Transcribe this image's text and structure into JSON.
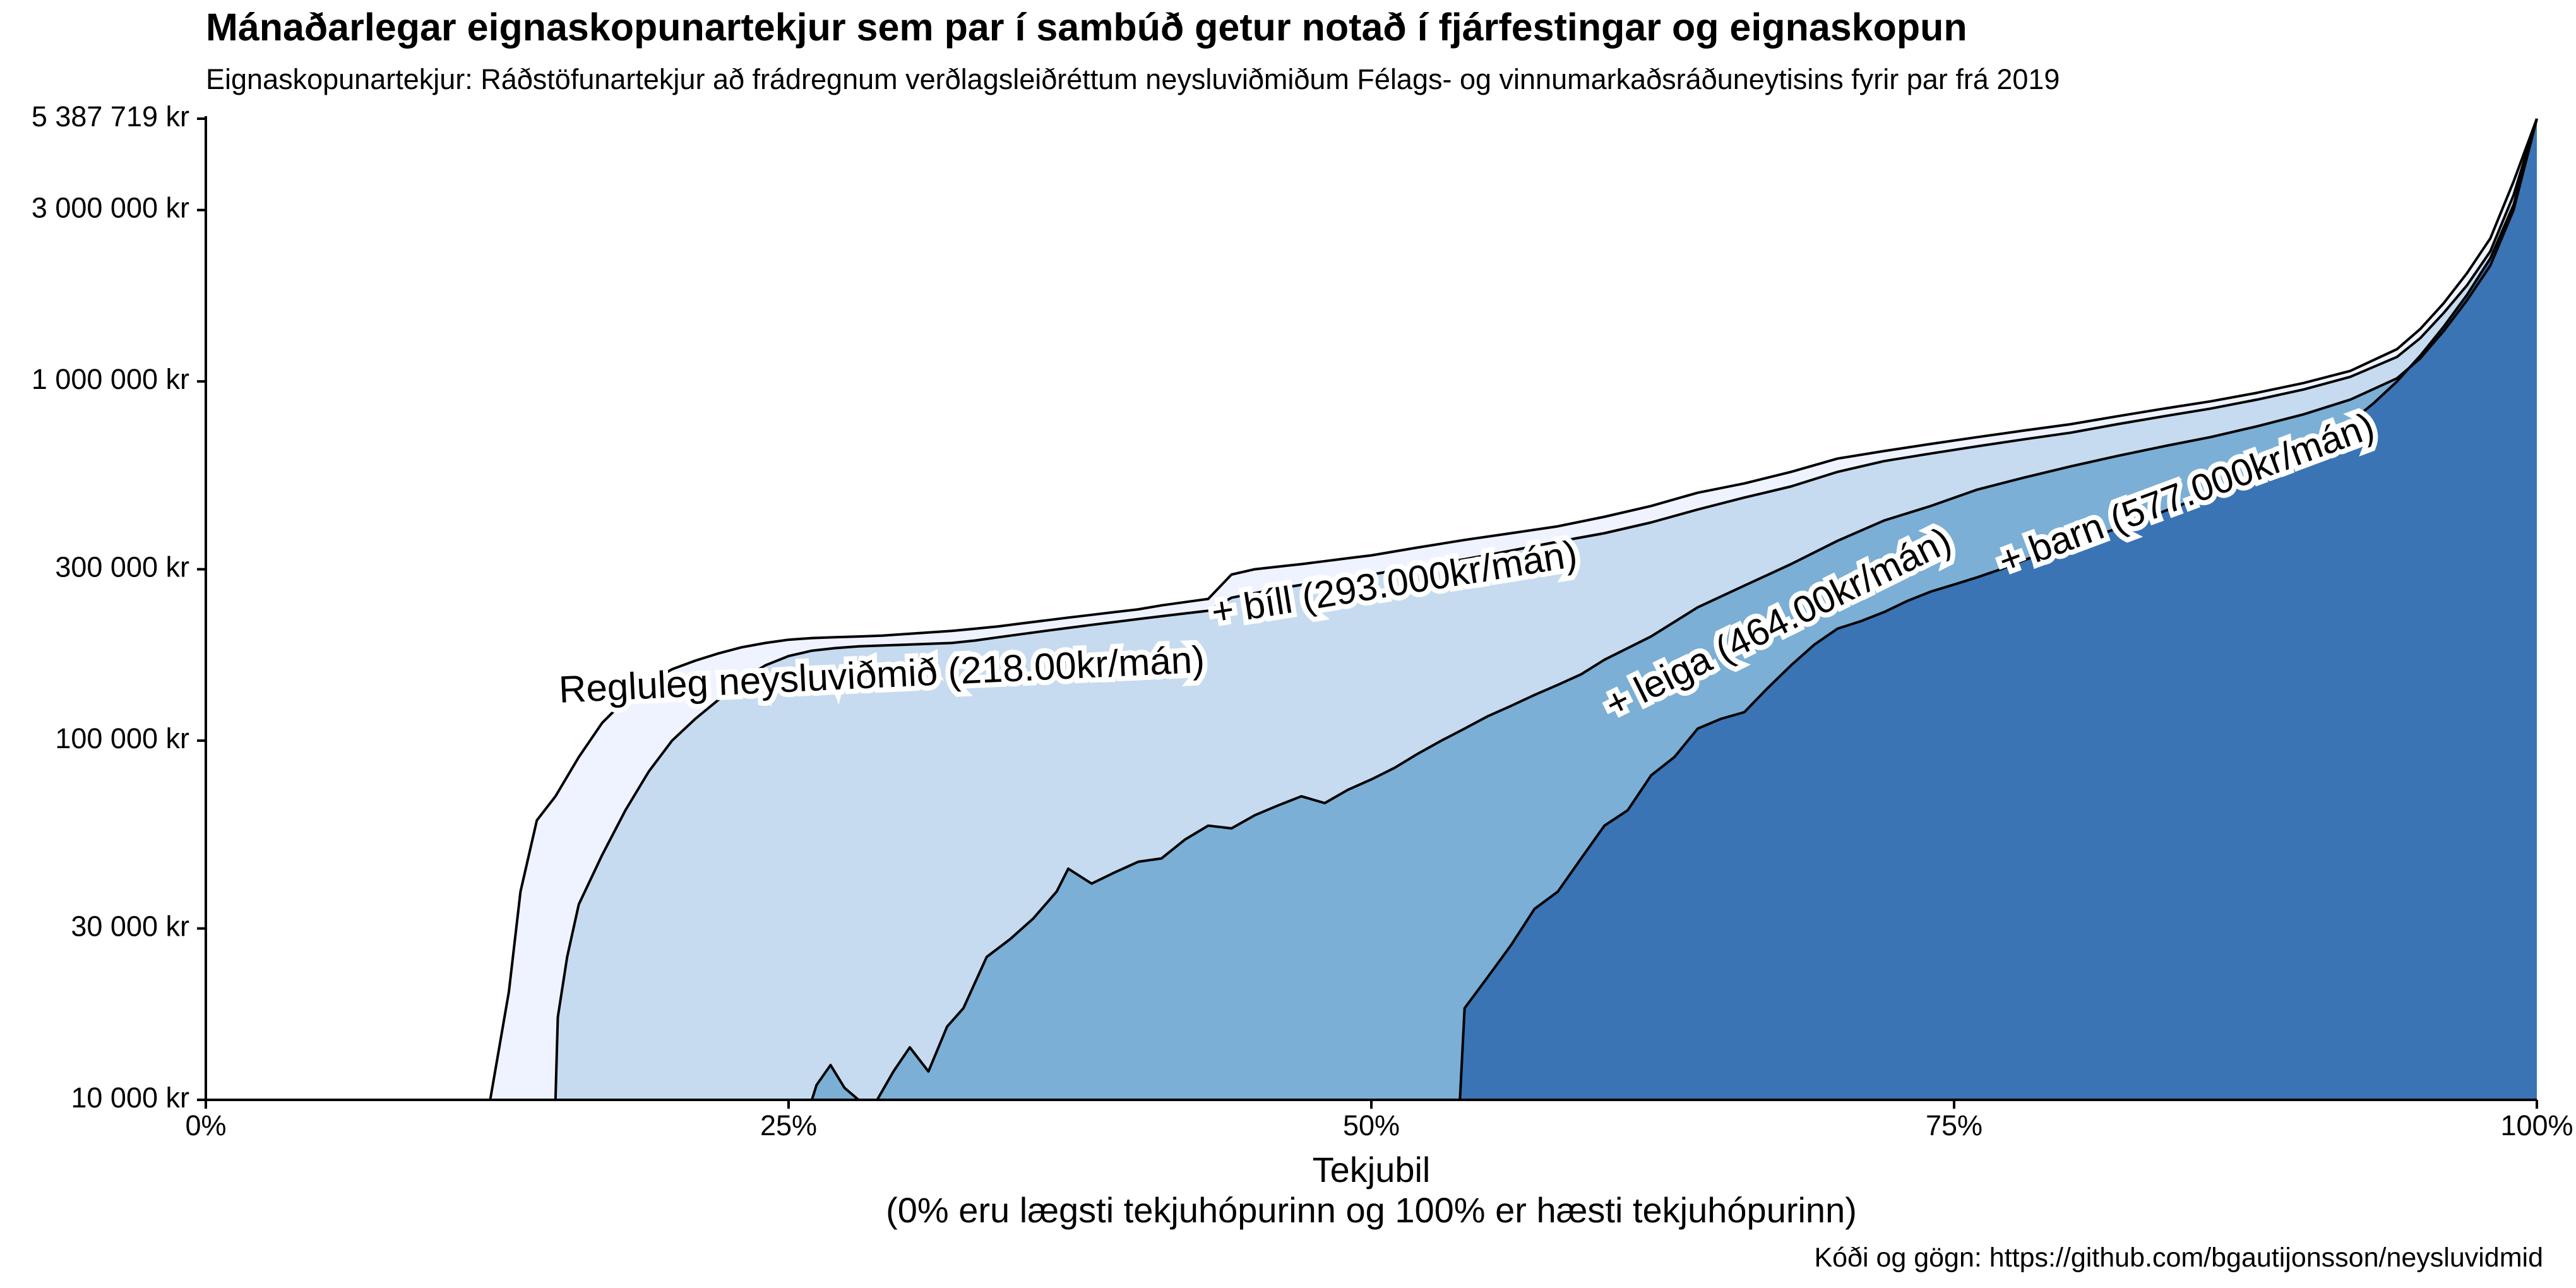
{
  "chart_data": {
    "type": "area",
    "title": "Mánaðarlegar eignaskopunartekjur sem par í sambúð getur notað í fjárfestingar og eignaskopun",
    "subtitle": "Eignaskopunartekjur: Ráðstöfunartekjur að frádregnum verðlagsleiðréttum neysluviðmiðum Félags- og vinnumarkaðsráðuneytisins fyrir par frá 2019",
    "xlabel": "Tekjubil",
    "xlabel_note": "(0% eru lægsti tekjuhópurinn og 100% er hæsti tekjuhópurinn)",
    "caption": "Kóði og gögn: https://github.com/bgautijonsson/neysluvidmid",
    "x_unit": "percent",
    "y_scale": "log",
    "ylim": [
      10000,
      5387719
    ],
    "xlim": [
      0,
      100
    ],
    "y_ticks": [
      {
        "value": 10000,
        "label": "10 000 kr"
      },
      {
        "value": 30000,
        "label": "30 000 kr"
      },
      {
        "value": 100000,
        "label": "100 000 kr"
      },
      {
        "value": 300000,
        "label": "300 000 kr"
      },
      {
        "value": 1000000,
        "label": "1 000 000 kr"
      },
      {
        "value": 3000000,
        "label": "3 000 000 kr"
      },
      {
        "value": 5387719,
        "label": "5 387 719 kr"
      }
    ],
    "x_ticks": [
      {
        "value": 0,
        "label": "0%"
      },
      {
        "value": 25,
        "label": "25%"
      },
      {
        "value": 50,
        "label": "50%"
      },
      {
        "value": 75,
        "label": "75%"
      },
      {
        "value": 100,
        "label": "100%"
      }
    ],
    "grid": false,
    "legend": "none",
    "series": [
      {
        "name": "Regluleg neysluviðmið (218.00kr/mán)",
        "color": "#eff3ff",
        "label_position": {
          "x": 29,
          "y": 150000
        },
        "points": [
          [
            12.2,
            10000
          ],
          [
            13.0,
            20000
          ],
          [
            13.5,
            38000
          ],
          [
            14.2,
            60000
          ],
          [
            15,
            70000
          ],
          [
            16,
            90000
          ],
          [
            17,
            112000
          ],
          [
            18,
            130000
          ],
          [
            19,
            145000
          ],
          [
            20,
            158000
          ],
          [
            21,
            167000
          ],
          [
            22,
            175000
          ],
          [
            23,
            182000
          ],
          [
            24,
            187000
          ],
          [
            25,
            191000
          ],
          [
            26,
            193000
          ],
          [
            27,
            194000
          ],
          [
            28,
            195000
          ],
          [
            29,
            196000
          ],
          [
            30,
            198000
          ],
          [
            31,
            200000
          ],
          [
            32,
            202000
          ],
          [
            33,
            205000
          ],
          [
            34,
            208000
          ],
          [
            35,
            212000
          ],
          [
            36,
            216000
          ],
          [
            37,
            220000
          ],
          [
            38,
            224000
          ],
          [
            39,
            228000
          ],
          [
            40,
            232000
          ],
          [
            41,
            238000
          ],
          [
            42,
            243000
          ],
          [
            43,
            248000
          ],
          [
            44,
            290000
          ],
          [
            45,
            300000
          ],
          [
            46,
            305000
          ],
          [
            47,
            310000
          ],
          [
            48,
            316000
          ],
          [
            49,
            322000
          ],
          [
            50,
            328000
          ],
          [
            52,
            345000
          ],
          [
            54,
            362000
          ],
          [
            56,
            378000
          ],
          [
            58,
            395000
          ],
          [
            60,
            420000
          ],
          [
            62,
            450000
          ],
          [
            64,
            490000
          ],
          [
            66,
            520000
          ],
          [
            68,
            560000
          ],
          [
            70,
            610000
          ],
          [
            72,
            640000
          ],
          [
            74,
            670000
          ],
          [
            76,
            700000
          ],
          [
            78,
            730000
          ],
          [
            80,
            760000
          ],
          [
            82,
            800000
          ],
          [
            84,
            840000
          ],
          [
            86,
            880000
          ],
          [
            88,
            930000
          ],
          [
            90,
            990000
          ],
          [
            92,
            1070000
          ],
          [
            94,
            1230000
          ],
          [
            95,
            1400000
          ],
          [
            96,
            1650000
          ],
          [
            97,
            2000000
          ],
          [
            98,
            2500000
          ],
          [
            99,
            3600000
          ],
          [
            100,
            5387719
          ]
        ]
      },
      {
        "name": "+ bíll (293.000kr/mán)",
        "color": "#c6dbef",
        "label_position": {
          "x": 51,
          "y": 270000
        },
        "points": [
          [
            15.0,
            10000
          ],
          [
            15.1,
            17000
          ],
          [
            15.5,
            25000
          ],
          [
            16,
            35000
          ],
          [
            17,
            48000
          ],
          [
            18,
            64000
          ],
          [
            19,
            82000
          ],
          [
            20,
            100000
          ],
          [
            21,
            115000
          ],
          [
            22,
            130000
          ],
          [
            23,
            148000
          ],
          [
            24,
            162000
          ],
          [
            25,
            172000
          ],
          [
            26,
            178000
          ],
          [
            27,
            181000
          ],
          [
            28,
            183000
          ],
          [
            29,
            184000
          ],
          [
            30,
            185000
          ],
          [
            31,
            186000
          ],
          [
            32,
            187000
          ],
          [
            33,
            190000
          ],
          [
            34,
            194000
          ],
          [
            35,
            198000
          ],
          [
            36,
            202000
          ],
          [
            37,
            206000
          ],
          [
            38,
            210000
          ],
          [
            39,
            214000
          ],
          [
            40,
            218000
          ],
          [
            41,
            222000
          ],
          [
            42,
            226000
          ],
          [
            43,
            230000
          ],
          [
            44,
            250000
          ],
          [
            46,
            265000
          ],
          [
            48,
            278000
          ],
          [
            50,
            290000
          ],
          [
            52,
            305000
          ],
          [
            54,
            320000
          ],
          [
            56,
            338000
          ],
          [
            58,
            358000
          ],
          [
            60,
            378000
          ],
          [
            62,
            405000
          ],
          [
            64,
            440000
          ],
          [
            66,
            475000
          ],
          [
            68,
            510000
          ],
          [
            70,
            560000
          ],
          [
            72,
            600000
          ],
          [
            74,
            630000
          ],
          [
            76,
            660000
          ],
          [
            78,
            690000
          ],
          [
            80,
            720000
          ],
          [
            82,
            760000
          ],
          [
            84,
            800000
          ],
          [
            86,
            840000
          ],
          [
            88,
            890000
          ],
          [
            90,
            950000
          ],
          [
            92,
            1030000
          ],
          [
            94,
            1170000
          ],
          [
            95,
            1320000
          ],
          [
            96,
            1550000
          ],
          [
            97,
            1850000
          ],
          [
            98,
            2300000
          ],
          [
            99,
            3300000
          ],
          [
            100,
            5387719
          ]
        ]
      },
      {
        "name": "+ leiga (464.00kr/mán)",
        "color": "#7bafd5",
        "label_position": {
          "x": 67.5,
          "y": 210000
        },
        "points": [
          [
            26.0,
            10000
          ],
          [
            26.2,
            11000
          ],
          [
            26.8,
            12500
          ],
          [
            27.4,
            10800
          ],
          [
            28.0,
            10000
          ],
          [
            28.8,
            10000
          ],
          [
            29.5,
            12000
          ],
          [
            30.2,
            14000
          ],
          [
            31.0,
            12000
          ],
          [
            31.8,
            16000
          ],
          [
            32.5,
            18000
          ],
          [
            33.5,
            25000
          ],
          [
            34.5,
            28000
          ],
          [
            35.5,
            32000
          ],
          [
            36.5,
            38000
          ],
          [
            37.0,
            44000
          ],
          [
            38.0,
            40000
          ],
          [
            39.0,
            43000
          ],
          [
            40.0,
            46000
          ],
          [
            41.0,
            47000
          ],
          [
            42.0,
            53000
          ],
          [
            43.0,
            58000
          ],
          [
            44.0,
            57000
          ],
          [
            45.0,
            62000
          ],
          [
            46.0,
            66000
          ],
          [
            47.0,
            70000
          ],
          [
            48.0,
            67000
          ],
          [
            49.0,
            73000
          ],
          [
            50.0,
            78000
          ],
          [
            51.0,
            84000
          ],
          [
            52.0,
            92000
          ],
          [
            53.0,
            100000
          ],
          [
            54.0,
            108000
          ],
          [
            55.0,
            117000
          ],
          [
            56.0,
            125000
          ],
          [
            57.0,
            134000
          ],
          [
            58.0,
            143000
          ],
          [
            59.0,
            153000
          ],
          [
            60.0,
            168000
          ],
          [
            62.0,
            195000
          ],
          [
            64.0,
            235000
          ],
          [
            66.0,
            270000
          ],
          [
            68.0,
            310000
          ],
          [
            70.0,
            360000
          ],
          [
            72.0,
            410000
          ],
          [
            74.0,
            450000
          ],
          [
            76.0,
            500000
          ],
          [
            78.0,
            540000
          ],
          [
            80.0,
            580000
          ],
          [
            82.0,
            620000
          ],
          [
            84.0,
            660000
          ],
          [
            86.0,
            700000
          ],
          [
            88.0,
            750000
          ],
          [
            90.0,
            810000
          ],
          [
            92.0,
            890000
          ],
          [
            94.0,
            1020000
          ],
          [
            95.0,
            1160000
          ],
          [
            96.0,
            1380000
          ],
          [
            97.0,
            1680000
          ],
          [
            98.0,
            2100000
          ],
          [
            99.0,
            3000000
          ],
          [
            100.0,
            5387719
          ]
        ]
      },
      {
        "name": "+ barn (577.000kr/mán)",
        "color": "#3a74b4",
        "label_position": {
          "x": 85,
          "y": 480000
        },
        "points": [
          [
            53.8,
            10000
          ],
          [
            54.0,
            18000
          ],
          [
            55.0,
            22000
          ],
          [
            56.0,
            27000
          ],
          [
            57.0,
            34000
          ],
          [
            58.0,
            38000
          ],
          [
            59.0,
            47000
          ],
          [
            60.0,
            58000
          ],
          [
            61.0,
            64000
          ],
          [
            62.0,
            80000
          ],
          [
            63.0,
            90000
          ],
          [
            64.0,
            108000
          ],
          [
            65.0,
            115000
          ],
          [
            66.0,
            120000
          ],
          [
            67.0,
            140000
          ],
          [
            68.0,
            162000
          ],
          [
            69.0,
            185000
          ],
          [
            70.0,
            205000
          ],
          [
            71.0,
            215000
          ],
          [
            72.0,
            228000
          ],
          [
            73.0,
            245000
          ],
          [
            74.0,
            260000
          ],
          [
            75.0,
            272000
          ],
          [
            76.0,
            285000
          ],
          [
            77.0,
            300000
          ],
          [
            78.0,
            318000
          ],
          [
            79.0,
            335000
          ],
          [
            80.0,
            352000
          ],
          [
            81.0,
            370000
          ],
          [
            82.0,
            390000
          ],
          [
            83.0,
            410000
          ],
          [
            84.0,
            435000
          ],
          [
            85.0,
            460000
          ],
          [
            86.0,
            485000
          ],
          [
            87.0,
            515000
          ],
          [
            88.0,
            550000
          ],
          [
            89.0,
            590000
          ],
          [
            90.0,
            640000
          ],
          [
            91.0,
            700000
          ],
          [
            92.0,
            770000
          ],
          [
            93.0,
            870000
          ],
          [
            94.0,
            1000000
          ],
          [
            95.0,
            1180000
          ],
          [
            96.0,
            1420000
          ],
          [
            97.0,
            1740000
          ],
          [
            98.0,
            2200000
          ],
          [
            99.0,
            3100000
          ],
          [
            100.0,
            5387719
          ]
        ]
      }
    ]
  }
}
